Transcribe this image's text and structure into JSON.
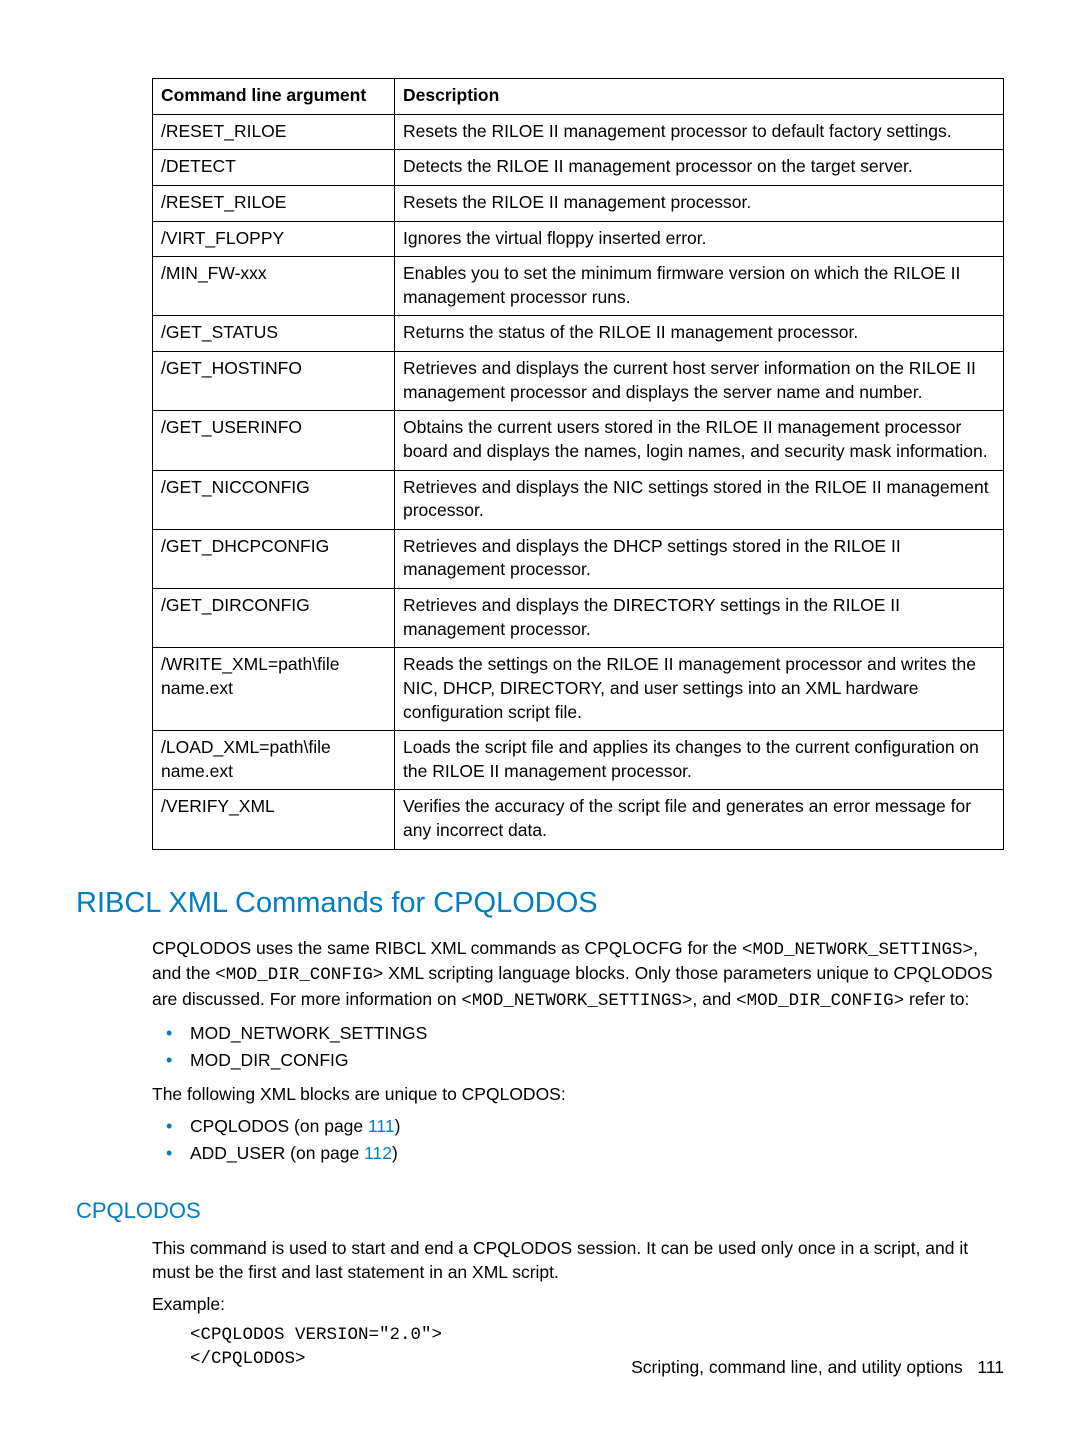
{
  "table": {
    "columns": [
      "Command line argument",
      "Description"
    ],
    "rows": [
      [
        "/RESET_RILOE",
        "Resets the RILOE II management processor to default factory settings."
      ],
      [
        "/DETECT",
        "Detects the RILOE II management processor on the target server."
      ],
      [
        "/RESET_RILOE",
        "Resets the RILOE II management processor."
      ],
      [
        "/VIRT_FLOPPY",
        "Ignores the virtual floppy inserted error."
      ],
      [
        "/MIN_FW-xxx",
        "Enables you to set the minimum firmware version on which the RILOE II management processor runs."
      ],
      [
        "/GET_STATUS",
        "Returns the status of the RILOE II management processor."
      ],
      [
        "/GET_HOSTINFO",
        "Retrieves and displays the current host server information on the RILOE II management processor and displays the server name and number."
      ],
      [
        "/GET_USERINFO",
        "Obtains the current users stored in the RILOE II management processor board and displays the names, login names, and security mask information."
      ],
      [
        "/GET_NICCONFIG",
        "Retrieves and displays the NIC settings stored in the RILOE II management processor."
      ],
      [
        "/GET_DHCPCONFIG",
        "Retrieves and displays the DHCP settings stored in the RILOE II management processor."
      ],
      [
        "/GET_DIRCONFIG",
        "Retrieves and displays the DIRECTORY settings in the RILOE II management processor."
      ],
      [
        "/WRITE_XML=path\\file name.ext",
        "Reads the settings on the RILOE II management processor and writes the NIC, DHCP, DIRECTORY, and user settings into an XML hardware configuration script file."
      ],
      [
        "/LOAD_XML=path\\file name.ext",
        "Loads the script file and applies its changes to the current configuration on the RILOE II management processor."
      ],
      [
        "/VERIFY_XML",
        "Verifies the accuracy of the script file and generates an error message for any incorrect data."
      ]
    ]
  },
  "section1": {
    "heading": "RIBCL XML Commands for CPQLODOS",
    "para1_a": "CPQLODOS uses the same RIBCL XML commands as CPQLOCFG for the ",
    "code1": "<MOD_NETWORK_SETTINGS>",
    "para1_b": ", and the ",
    "code2": "<MOD_DIR_CONFIG>",
    "para1_c": " XML scripting language blocks. Only those parameters unique to CPQLODOS are discussed. For more information on ",
    "code3": "<MOD_NETWORK_SETTINGS>",
    "para1_d": ", and ",
    "code4": "<MOD_DIR_CONFIG>",
    "para1_e": " refer to:",
    "bullets1": [
      "MOD_NETWORK_SETTINGS",
      "MOD_DIR_CONFIG"
    ],
    "para2": "The following XML blocks are unique to CPQLODOS:",
    "bullets2": [
      {
        "text_a": "CPQLODOS (on page ",
        "link": "111",
        "text_b": ")"
      },
      {
        "text_a": "ADD_USER (on page ",
        "link": "112",
        "text_b": ")"
      }
    ]
  },
  "section2": {
    "heading": "CPQLODOS",
    "para1": "This command is used to start and end a CPQLODOS session. It can be used only once in a script, and it must be the first and last statement in an XML script.",
    "para2": "Example:",
    "code": "<CPQLODOS VERSION=\"2.0\">\n</CPQLODOS>"
  },
  "footer": {
    "text": "Scripting, command line, and utility options",
    "page": "111"
  }
}
